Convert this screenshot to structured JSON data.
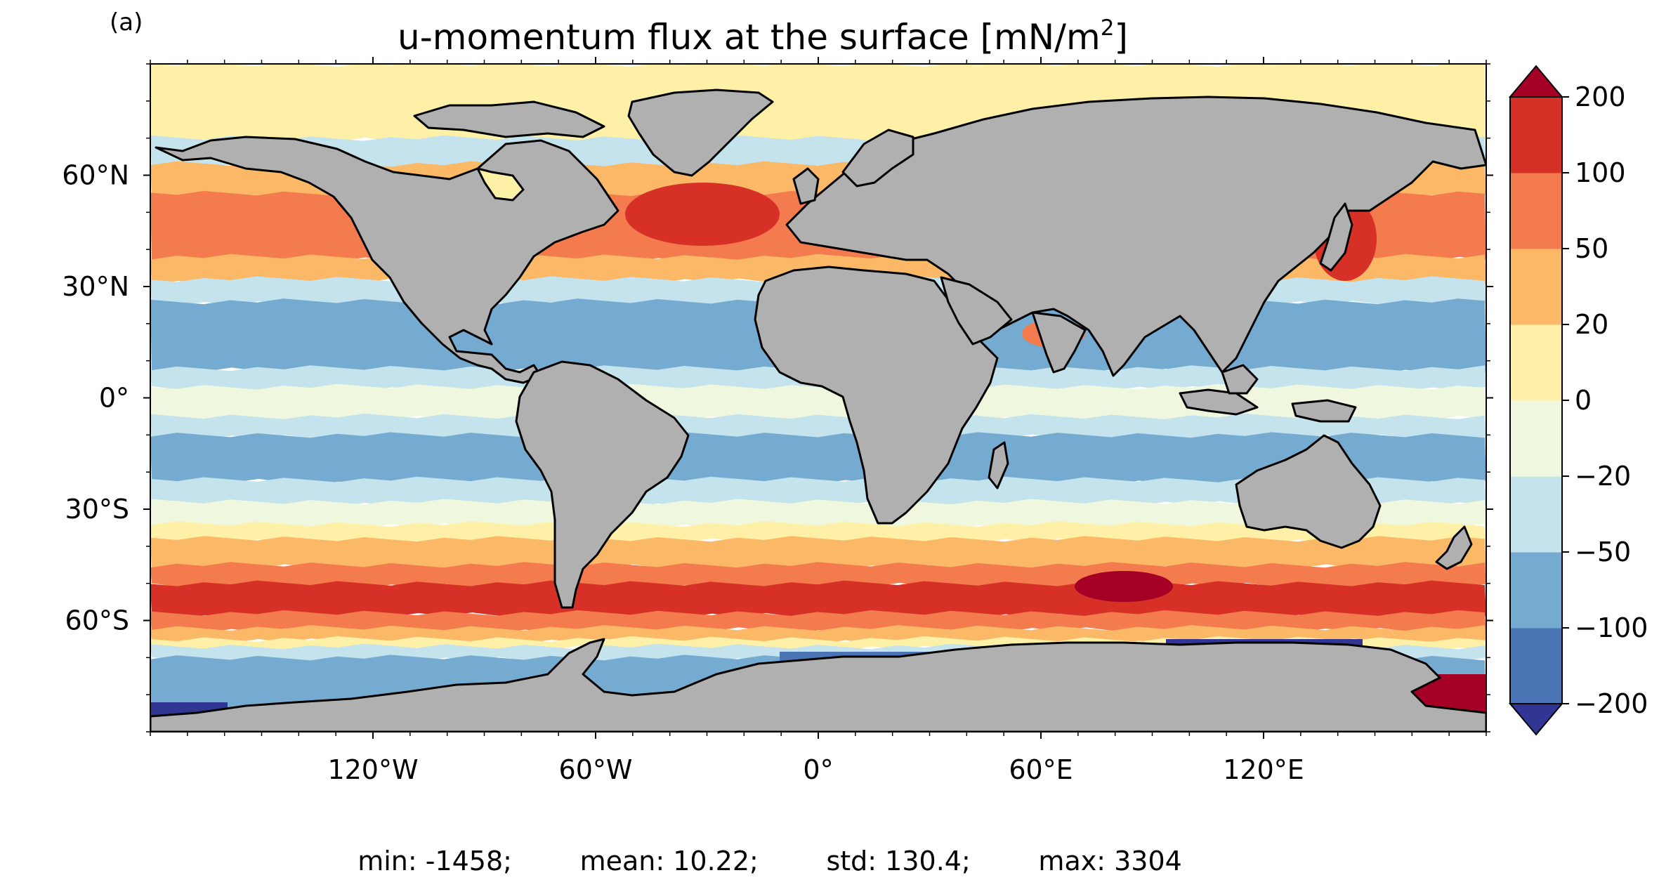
{
  "panel_label": "(a)",
  "title": "u-momentum flux at the surface [mN/m",
  "title_sup": "2",
  "title_close": "]",
  "stats": {
    "min_label": "min: -1458;",
    "mean_label": "mean: 10.22;",
    "std_label": "std: 130.4;",
    "max_label": "max: 3304"
  },
  "chart_data": {
    "type": "heatmap",
    "title": "u-momentum flux at the surface [mN/m2]",
    "projection": "plate carree",
    "land_color": "#b0b0b0",
    "coastline_color": "#000000",
    "x_axis": {
      "lim": [
        -180,
        180
      ],
      "ticks": [
        -120,
        -60,
        0,
        60,
        120
      ],
      "tick_labels": [
        "120°W",
        "60°W",
        "0°",
        "60°E",
        "120°E"
      ]
    },
    "y_axis": {
      "lim": [
        -90,
        90
      ],
      "ticks": [
        60,
        30,
        0,
        -30,
        -60
      ],
      "tick_labels": [
        "60°N",
        "30°N",
        "0°",
        "30°S",
        "60°S"
      ]
    },
    "colorbar": {
      "levels": [
        -200,
        -100,
        -50,
        -20,
        0,
        20,
        50,
        100,
        200
      ],
      "tick_labels": [
        "−200",
        "−100",
        "−50",
        "−20",
        "0",
        "20",
        "50",
        "100",
        "200"
      ],
      "colors": [
        "#4a74b4",
        "#75abd0",
        "#c4e3ed",
        "#eff8de",
        "#fff0a8",
        "#fbb968",
        "#f47b4e",
        "#d73027"
      ],
      "under_color": "#313695",
      "over_color": "#a50026",
      "extend": "both"
    },
    "zonal_bands": [
      {
        "lat": [
          70,
          90
        ],
        "level": "0 to 20"
      },
      {
        "lat": [
          63,
          70
        ],
        "level": "-50 to -20"
      },
      {
        "lat": [
          55,
          63
        ],
        "level": "20 to 50"
      },
      {
        "lat": [
          38,
          55
        ],
        "level": "50 to 100"
      },
      {
        "lat": [
          32,
          38
        ],
        "level": "20 to 50"
      },
      {
        "lat": [
          26,
          32
        ],
        "level": "-50 to -20"
      },
      {
        "lat": [
          8,
          26
        ],
        "level": "-100 to -50"
      },
      {
        "lat": [
          3,
          8
        ],
        "level": "-50 to -20"
      },
      {
        "lat": [
          -5,
          3
        ],
        "level": "-20 to 0"
      },
      {
        "lat": [
          -10,
          -5
        ],
        "level": "-50 to -20"
      },
      {
        "lat": [
          -22,
          -10
        ],
        "level": "-100 to -50"
      },
      {
        "lat": [
          -28,
          -22
        ],
        "level": "-50 to -20"
      },
      {
        "lat": [
          -34,
          -28
        ],
        "level": "-20 to 0"
      },
      {
        "lat": [
          -38,
          -34
        ],
        "level": "0 to 20"
      },
      {
        "lat": [
          -45,
          -38
        ],
        "level": "20 to 50"
      },
      {
        "lat": [
          -50,
          -45
        ],
        "level": "50 to 100"
      },
      {
        "lat": [
          -58,
          -50
        ],
        "level": "100 to 200"
      },
      {
        "lat": [
          -62,
          -58
        ],
        "level": "50 to 100"
      },
      {
        "lat": [
          -65,
          -62
        ],
        "level": "20 to 50"
      },
      {
        "lat": [
          -67,
          -65
        ],
        "level": "0 to 20"
      },
      {
        "lat": [
          -70,
          -67
        ],
        "level": "-50 to -20"
      },
      {
        "lat": [
          -90,
          -70
        ],
        "level": "-100 to -50"
      }
    ]
  }
}
